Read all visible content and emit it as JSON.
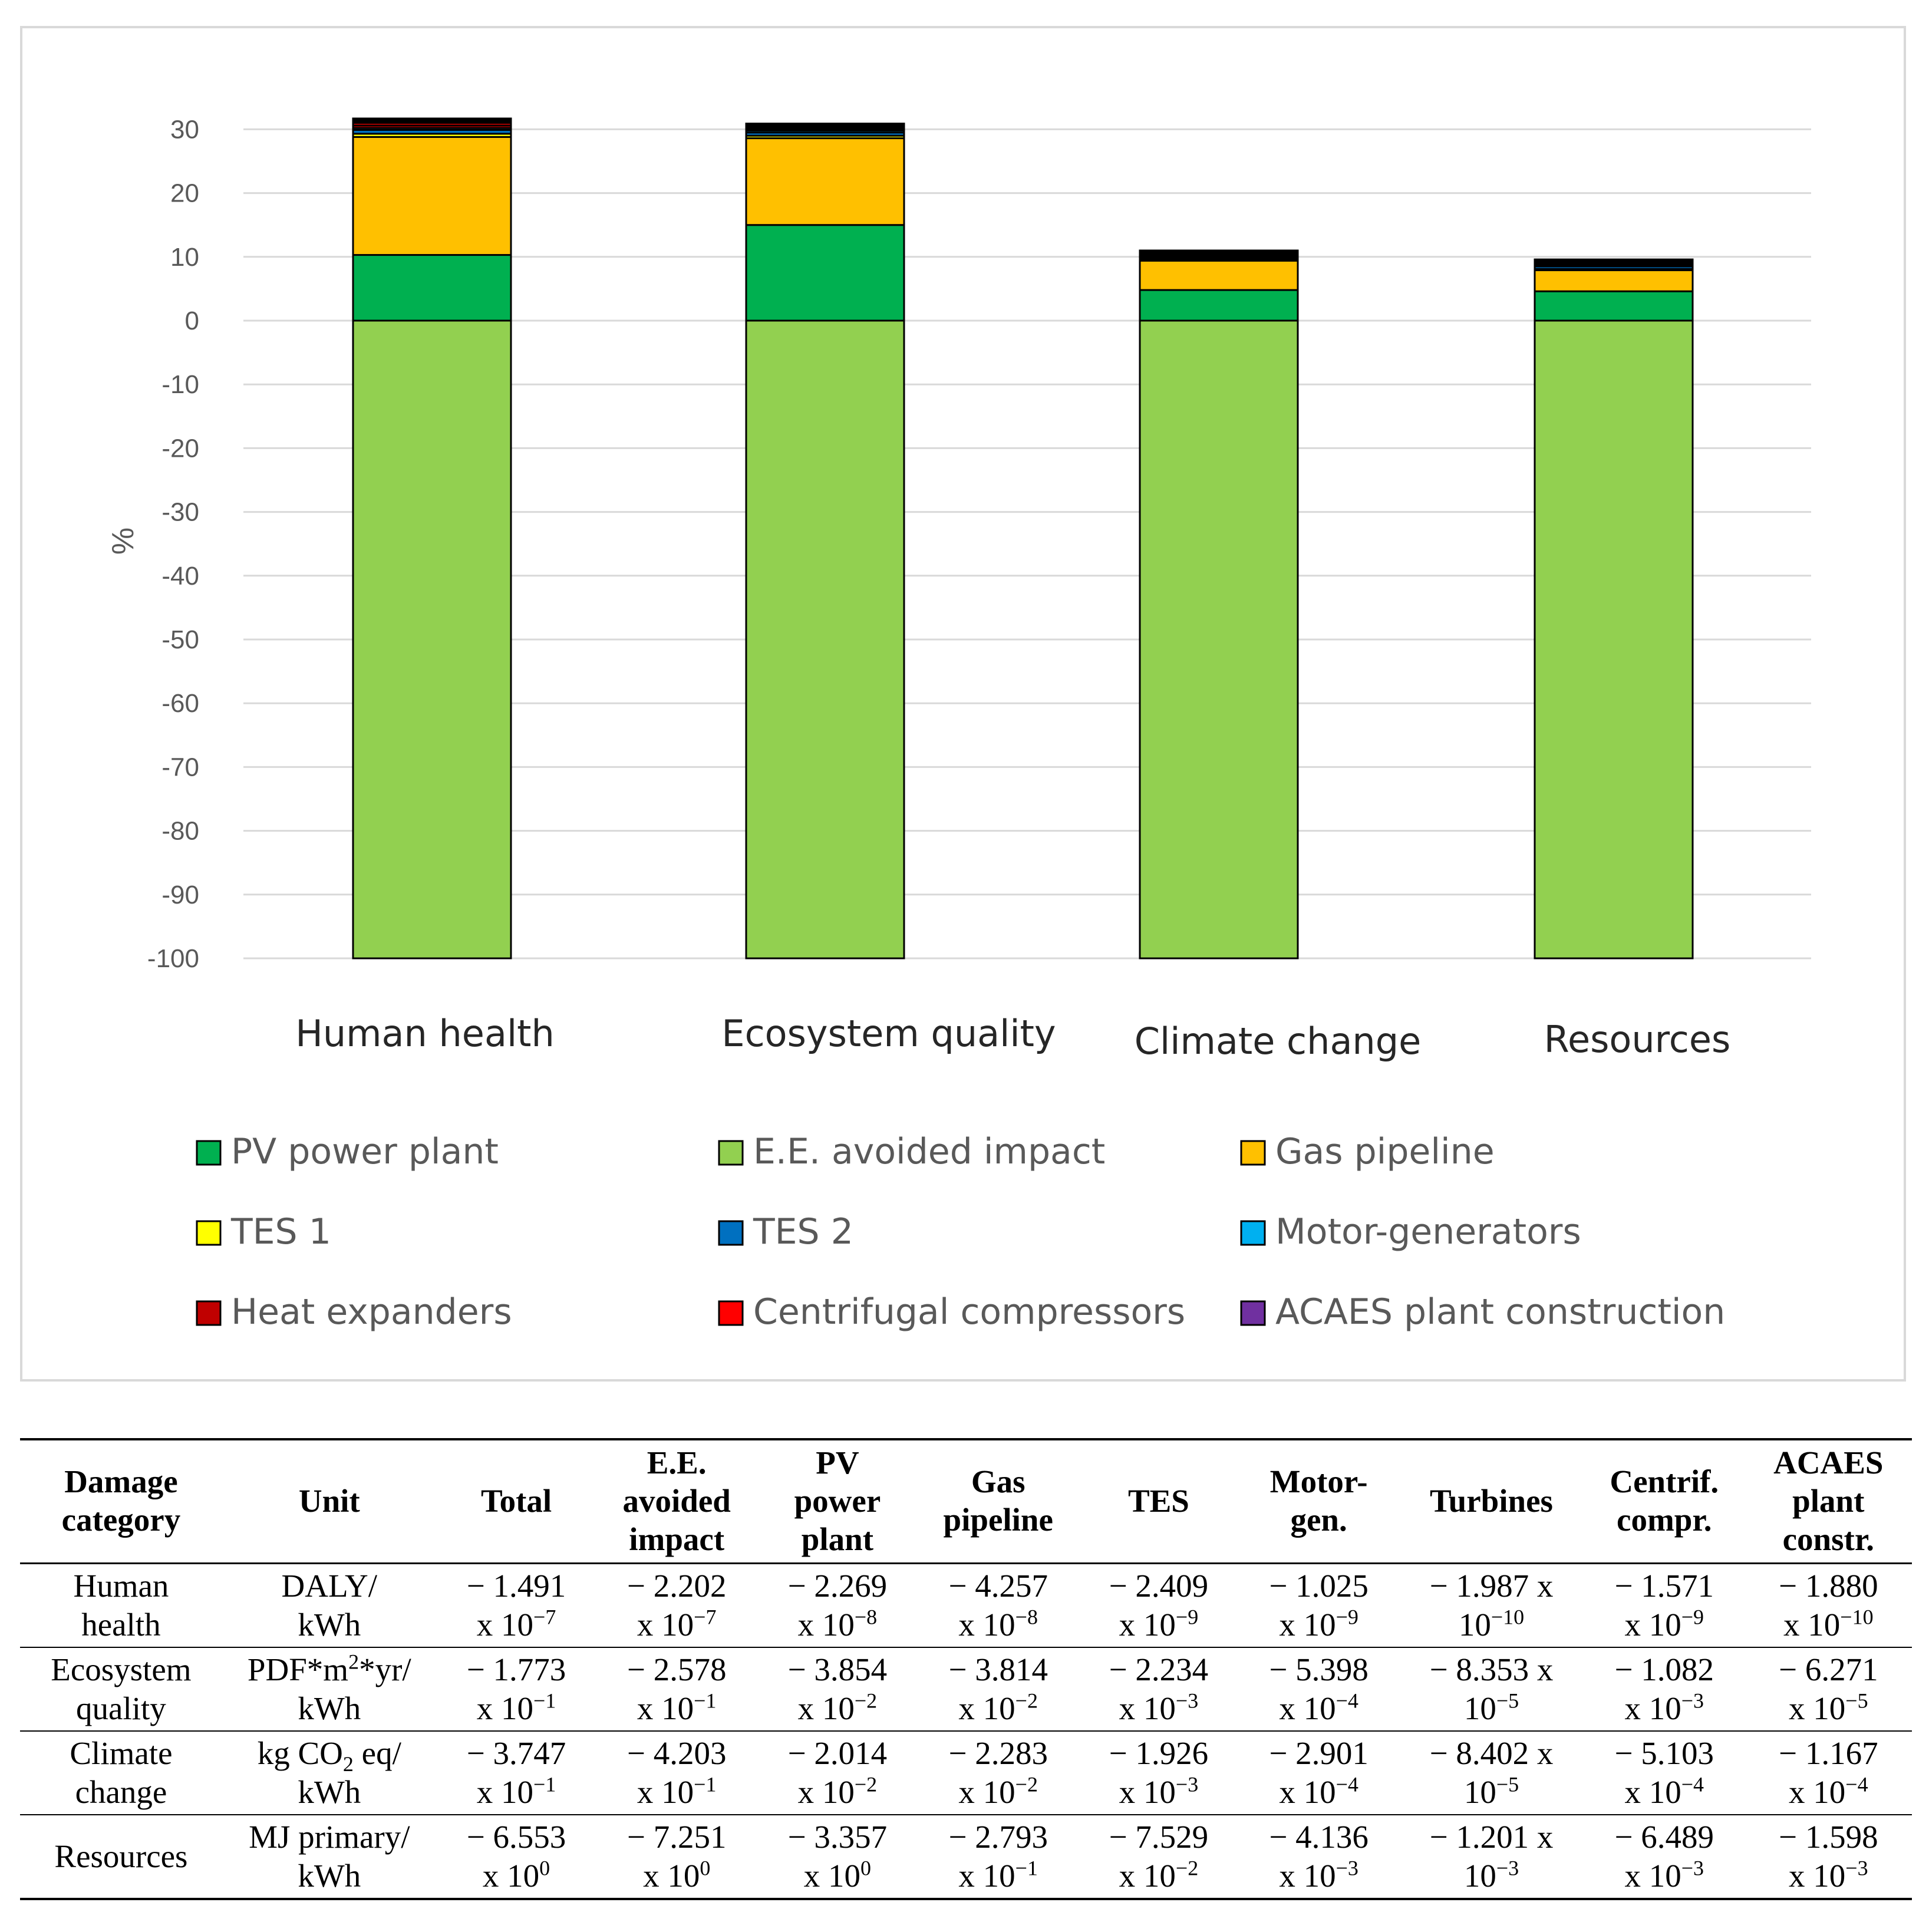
{
  "chart_data": {
    "type": "bar",
    "stacked": true,
    "ylabel": "%",
    "ylim": [
      -100,
      30
    ],
    "yticks": [
      30,
      20,
      10,
      0,
      -10,
      -20,
      -30,
      -40,
      -50,
      -60,
      -70,
      -80,
      -90,
      -100
    ],
    "ytick_labels": [
      "30",
      "20",
      "10",
      "0",
      "-10",
      "-20",
      "-30",
      "-40",
      "-50",
      "-60",
      "-70",
      "-80",
      "-90",
      "-100"
    ],
    "grid": true,
    "legend_position": "bottom",
    "categories": [
      "Human health",
      "Ecosystem quality",
      "Climate change",
      "Resources"
    ],
    "series": [
      {
        "name": "E.E. avoided impact",
        "color": "#92d050",
        "values": [
          -100,
          -100,
          -100,
          -100
        ]
      },
      {
        "name": "PV power plant",
        "color": "#00b050",
        "values": [
          10.3,
          15.0,
          4.8,
          4.6
        ]
      },
      {
        "name": "Gas pipeline",
        "color": "#ffc000",
        "values": [
          18.5,
          13.6,
          4.6,
          3.3
        ]
      },
      {
        "name": "TES 1",
        "color": "#ffff00",
        "values": [
          0.5,
          0.4,
          0.2,
          0.2
        ]
      },
      {
        "name": "TES 2",
        "color": "#0070c0",
        "values": [
          0.6,
          0.5,
          0.2,
          0.4
        ]
      },
      {
        "name": "Motor-generators",
        "color": "#00b0f0",
        "values": [
          0.3,
          0.3,
          0.1,
          0.2
        ]
      },
      {
        "name": "Heat expanders",
        "color": "#c00000",
        "values": [
          0.4,
          0.2,
          0.1,
          0.1
        ]
      },
      {
        "name": "Centrifugal compressors",
        "color": "#ff0000",
        "values": [
          0.4,
          0.2,
          0.1,
          0.1
        ]
      },
      {
        "name": "ACAES plant construction",
        "color": "#7030a0",
        "values": [
          0.1,
          0.1,
          0.1,
          0.1
        ]
      },
      {
        "name": "",
        "color": "#000000",
        "values": [
          0.6,
          0.6,
          0.8,
          0.6
        ]
      }
    ],
    "legend": [
      {
        "label": "PV power plant",
        "color": "#00b050"
      },
      {
        "label": "E.E. avoided impact",
        "color": "#92d050"
      },
      {
        "label": "Gas pipeline",
        "color": "#ffc000"
      },
      {
        "label": "TES 1",
        "color": "#ffff00"
      },
      {
        "label": "TES 2",
        "color": "#0070c0"
      },
      {
        "label": "Motor-generators",
        "color": "#00b0f0"
      },
      {
        "label": "Heat expanders",
        "color": "#c00000"
      },
      {
        "label": "Centrifugal compressors",
        "color": "#ff0000"
      },
      {
        "label": "ACAES plant construction",
        "color": "#7030a0"
      }
    ]
  },
  "table": {
    "headers": [
      [
        "Damage",
        "category"
      ],
      [
        "Unit"
      ],
      [
        "Total"
      ],
      [
        "E.E.",
        "avoided",
        "impact"
      ],
      [
        "PV",
        "power",
        "plant"
      ],
      [
        "Gas",
        "pipeline"
      ],
      [
        "TES"
      ],
      [
        "Motor-",
        "gen."
      ],
      [
        "Turbines"
      ],
      [
        "Centrif.",
        "compr."
      ],
      [
        "ACAES",
        "plant",
        "constr."
      ]
    ],
    "rows": [
      {
        "category": [
          "Human",
          "health"
        ],
        "unit": [
          "DALY/",
          "kWh"
        ],
        "values": [
          {
            "m": "− 1.491",
            "x": "x 10",
            "e": "−7"
          },
          {
            "m": "− 2.202",
            "x": "x 10",
            "e": "−7"
          },
          {
            "m": "− 2.269",
            "x": "x 10",
            "e": "−8"
          },
          {
            "m": "− 4.257",
            "x": "x 10",
            "e": "−8"
          },
          {
            "m": "− 2.409",
            "x": "x 10",
            "e": "−9"
          },
          {
            "m": "− 1.025",
            "x": "x 10",
            "e": "−9"
          },
          {
            "m": "− 1.987 x",
            "x": "10",
            "e": "−10"
          },
          {
            "m": "− 1.571",
            "x": "x 10",
            "e": "−9"
          },
          {
            "m": "− 1.880",
            "x": "x 10",
            "e": "−10"
          }
        ]
      },
      {
        "category": [
          "Ecosystem",
          "quality"
        ],
        "unit": [
          "PDF*m",
          "2",
          "*yr/",
          "kWh"
        ],
        "values": [
          {
            "m": "− 1.773",
            "x": "x 10",
            "e": "−1"
          },
          {
            "m": "− 2.578",
            "x": "x 10",
            "e": "−1"
          },
          {
            "m": "− 3.854",
            "x": "x 10",
            "e": "−2"
          },
          {
            "m": "− 3.814",
            "x": "x 10",
            "e": "−2"
          },
          {
            "m": "− 2.234",
            "x": "x 10",
            "e": "−3"
          },
          {
            "m": "− 5.398",
            "x": "x 10",
            "e": "−4"
          },
          {
            "m": "− 8.353 x",
            "x": "10",
            "e": "−5"
          },
          {
            "m": "− 1.082",
            "x": "x 10",
            "e": "−3"
          },
          {
            "m": "− 6.271",
            "x": "x 10",
            "e": "−5"
          }
        ]
      },
      {
        "category": [
          "Climate",
          "change"
        ],
        "unit": [
          "kg CO",
          "2",
          " eq/",
          "kWh"
        ],
        "values": [
          {
            "m": "− 3.747",
            "x": "x 10",
            "e": "−1"
          },
          {
            "m": "− 4.203",
            "x": "x 10",
            "e": "−1"
          },
          {
            "m": "− 2.014",
            "x": "x 10",
            "e": "−2"
          },
          {
            "m": "− 2.283",
            "x": "x 10",
            "e": "−2"
          },
          {
            "m": "− 1.926",
            "x": "x 10",
            "e": "−3"
          },
          {
            "m": "− 2.901",
            "x": "x 10",
            "e": "−4"
          },
          {
            "m": "− 8.402 x",
            "x": "10",
            "e": "−5"
          },
          {
            "m": "− 5.103",
            "x": "x 10",
            "e": "−4"
          },
          {
            "m": "− 1.167",
            "x": "x 10",
            "e": "−4"
          }
        ]
      },
      {
        "category": [
          "Resources"
        ],
        "unit": [
          "MJ primary/",
          "kWh"
        ],
        "values": [
          {
            "m": "− 6.553",
            "x": "x 10",
            "e": "0"
          },
          {
            "m": "− 7.251",
            "x": "x 10",
            "e": "0"
          },
          {
            "m": "− 3.357",
            "x": "x 10",
            "e": "0"
          },
          {
            "m": "− 2.793",
            "x": "x 10",
            "e": "−1"
          },
          {
            "m": "− 7.529",
            "x": "x 10",
            "e": "−2"
          },
          {
            "m": "− 4.136",
            "x": "x 10",
            "e": "−3"
          },
          {
            "m": "− 1.201 x",
            "x": "10",
            "e": "−3"
          },
          {
            "m": "− 6.489",
            "x": "x 10",
            "e": "−3"
          },
          {
            "m": "− 1.598",
            "x": "x 10",
            "e": "−3"
          }
        ]
      }
    ]
  }
}
